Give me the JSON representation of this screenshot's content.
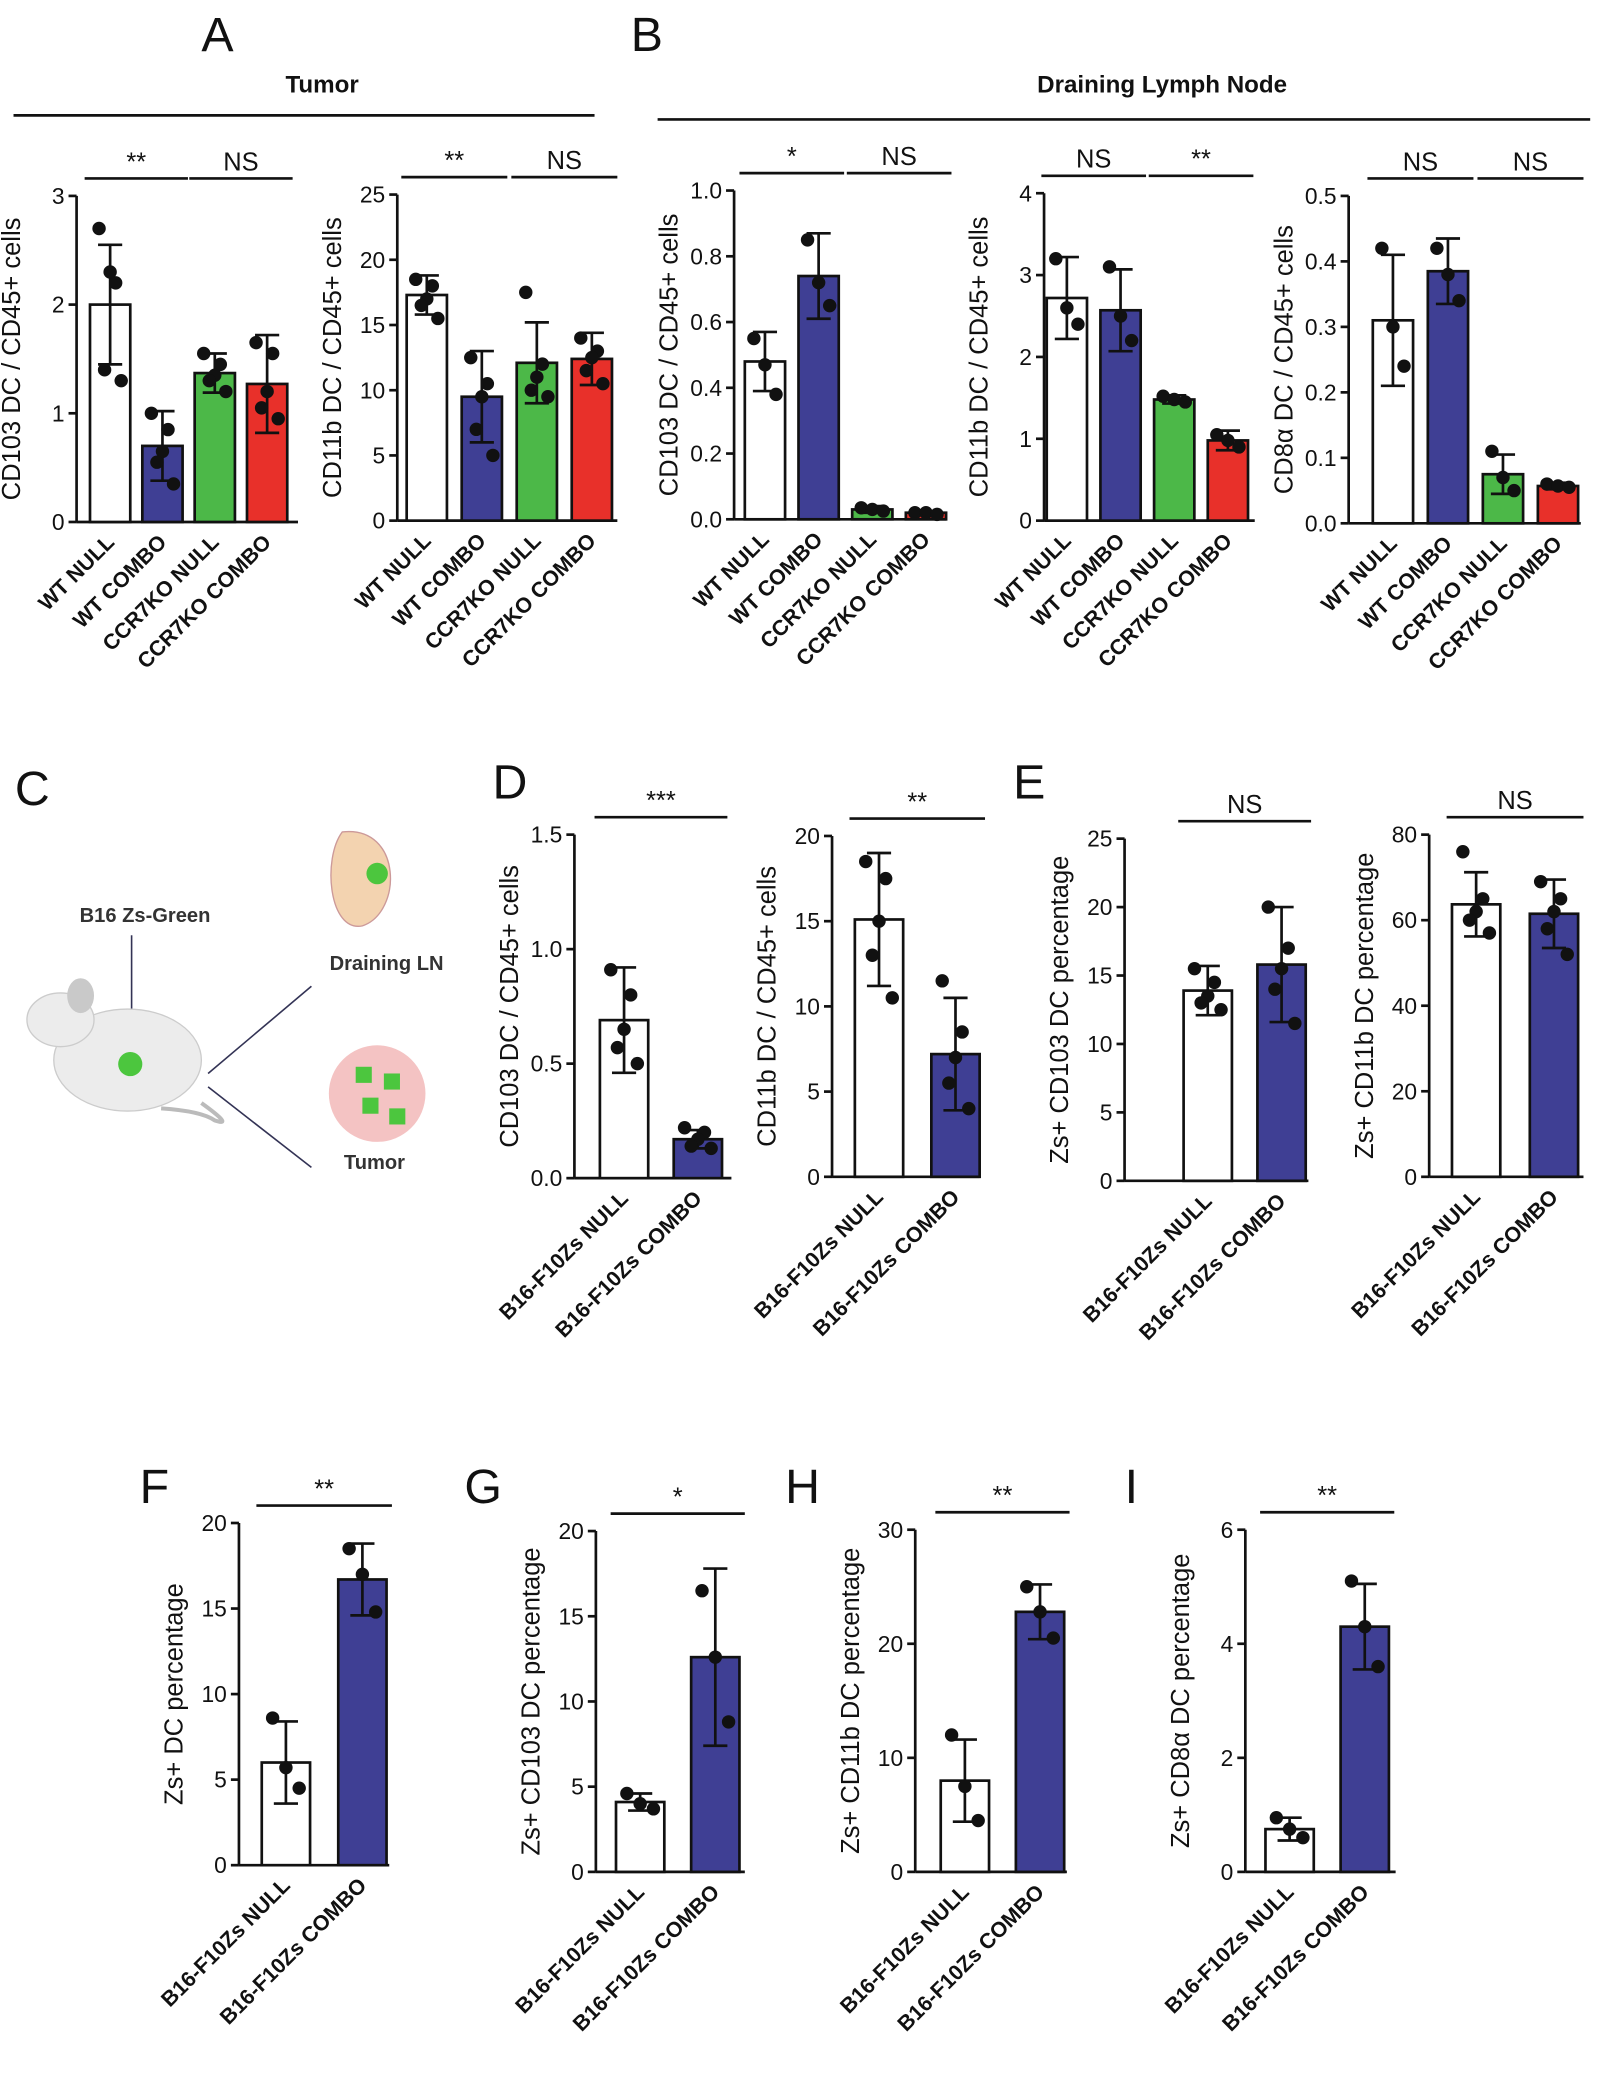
{
  "panels": [
    "A",
    "B",
    "C",
    "D",
    "E",
    "F",
    "G",
    "H",
    "I"
  ],
  "groups": [
    "Tumor",
    "Draining Lymph Node"
  ],
  "diagram": {
    "injection": "B16 Zs-Green",
    "lymph_node": "Draining LN",
    "tumor": "Tumor"
  },
  "chart_data": [
    {
      "type": "bar",
      "ylabel": "CD103 DC / CD45+ cells",
      "categories": [
        "WT NULL",
        "WT COMBO",
        "CCR7KO NULL",
        "CCR7KO COMBO"
      ],
      "colors": [
        "#ffffff",
        "#3f3f94",
        "#4cb848",
        "#e8302a"
      ],
      "values": [
        2.0,
        0.7,
        1.37,
        1.27
      ],
      "errors": [
        0.55,
        0.32,
        0.18,
        0.45
      ],
      "points": [
        [
          2.7,
          2.2,
          2.3,
          1.4,
          1.3
        ],
        [
          1.0,
          0.85,
          0.65,
          0.55,
          0.35
        ],
        [
          1.55,
          1.45,
          1.35,
          1.3,
          1.2
        ],
        [
          1.65,
          1.55,
          1.2,
          1.05,
          0.95
        ]
      ],
      "ylim": [
        0,
        3
      ],
      "yticks": [
        0,
        1,
        2,
        3
      ],
      "significance": [
        "**",
        "NS"
      ]
    },
    {
      "type": "bar",
      "ylabel": "CD11b DC / CD45+ cells",
      "categories": [
        "WT NULL",
        "WT COMBO",
        "CCR7KO NULL",
        "CCR7KO COMBO"
      ],
      "colors": [
        "#ffffff",
        "#3f3f94",
        "#4cb848",
        "#e8302a"
      ],
      "values": [
        17.3,
        9.5,
        12.1,
        12.4
      ],
      "errors": [
        1.5,
        3.5,
        3.1,
        2.0
      ],
      "points": [
        [
          18.5,
          18,
          17,
          16.5,
          15.5
        ],
        [
          12.5,
          10.5,
          9.5,
          7,
          5
        ],
        [
          17.5,
          12,
          11,
          10,
          9.5
        ],
        [
          14,
          13,
          12.5,
          11.5,
          10.5
        ]
      ],
      "ylim": [
        0,
        25
      ],
      "yticks": [
        0,
        5,
        10,
        15,
        20,
        25
      ],
      "significance": [
        "**",
        "NS"
      ]
    },
    {
      "type": "bar",
      "ylabel": "CD103 DC / CD45+ cells",
      "categories": [
        "WT NULL",
        "WT COMBO",
        "CCR7KO NULL",
        "CCR7KO COMBO"
      ],
      "colors": [
        "#ffffff",
        "#3f3f94",
        "#4cb848",
        "#e8302a"
      ],
      "values": [
        0.48,
        0.74,
        0.03,
        0.02
      ],
      "errors": [
        0.09,
        0.13,
        0.01,
        0.005
      ],
      "points": [
        [
          0.55,
          0.47,
          0.38
        ],
        [
          0.85,
          0.72,
          0.65
        ],
        [
          0.035,
          0.03,
          0.025
        ],
        [
          0.02,
          0.02,
          0.015
        ]
      ],
      "ylim": [
        0,
        1
      ],
      "yticks": [
        {
          "value": 0,
          "label": "0.0"
        },
        0.2,
        0.4,
        0.6,
        0.8,
        {
          "value": 1,
          "label": "1.0"
        }
      ],
      "significance": [
        "*",
        "NS"
      ]
    },
    {
      "type": "bar",
      "ylabel": "CD11b DC / CD45+ cells",
      "categories": [
        "WT NULL",
        "WT COMBO",
        "CCR7KO NULL",
        "CCR7KO COMBO"
      ],
      "colors": [
        "#ffffff",
        "#3f3f94",
        "#4cb848",
        "#e8302a"
      ],
      "values": [
        2.72,
        2.57,
        1.48,
        0.98
      ],
      "errors": [
        0.5,
        0.5,
        0.05,
        0.12
      ],
      "points": [
        [
          3.2,
          2.6,
          2.4
        ],
        [
          3.1,
          2.5,
          2.2
        ],
        [
          1.52,
          1.48,
          1.45
        ],
        [
          1.05,
          0.98,
          0.9
        ]
      ],
      "ylim": [
        0,
        4
      ],
      "yticks": [
        0,
        1,
        2,
        3,
        4
      ],
      "significance": [
        "NS",
        "**"
      ]
    },
    {
      "type": "bar",
      "ylabel": "CD8α DC / CD45+ cells",
      "categories": [
        "WT NULL",
        "WT COMBO",
        "CCR7KO NULL",
        "CCR7KO COMBO"
      ],
      "colors": [
        "#ffffff",
        "#3f3f94",
        "#4cb848",
        "#e8302a"
      ],
      "values": [
        0.31,
        0.385,
        0.075,
        0.057
      ],
      "errors": [
        0.1,
        0.05,
        0.03,
        0.005
      ],
      "points": [
        [
          0.42,
          0.3,
          0.24
        ],
        [
          0.42,
          0.38,
          0.34
        ],
        [
          0.11,
          0.07,
          0.05
        ],
        [
          0.06,
          0.057,
          0.055
        ]
      ],
      "ylim": [
        0,
        0.5
      ],
      "yticks": [
        {
          "value": 0,
          "label": "0.0"
        },
        0.1,
        0.2,
        0.3,
        0.4,
        0.5
      ],
      "significance": [
        "NS",
        "NS"
      ]
    },
    {
      "type": "bar",
      "ylabel": "CD103 DC / CD45+ cells",
      "categories": [
        "B16-F10Zs NULL",
        "B16-F10Zs COMBO"
      ],
      "colors": [
        "#ffffff",
        "#3f3f94"
      ],
      "values": [
        0.69,
        0.17
      ],
      "errors": [
        0.23,
        0.04
      ],
      "points": [
        [
          0.91,
          0.8,
          0.65,
          0.57,
          0.5
        ],
        [
          0.22,
          0.2,
          0.17,
          0.14,
          0.13
        ]
      ],
      "ylim": [
        0,
        1.5
      ],
      "yticks": [
        {
          "value": 0,
          "label": "0.0"
        },
        0.5,
        {
          "value": 1,
          "label": "1.0"
        },
        1.5
      ],
      "significance": [
        "***"
      ]
    },
    {
      "type": "bar",
      "ylabel": "CD11b DC / CD45+ cells",
      "categories": [
        "B16-F10Zs NULL",
        "B16-F10Zs COMBO"
      ],
      "colors": [
        "#ffffff",
        "#3f3f94"
      ],
      "values": [
        15.1,
        7.2
      ],
      "errors": [
        3.9,
        3.3
      ],
      "points": [
        [
          18.5,
          17.5,
          15,
          13,
          10.5
        ],
        [
          11.5,
          8.5,
          7,
          5.5,
          4
        ]
      ],
      "ylim": [
        0,
        20
      ],
      "yticks": [
        0,
        5,
        10,
        15,
        20
      ],
      "significance": [
        "**"
      ]
    },
    {
      "type": "bar",
      "ylabel": "Zs+ CD103 DC percentage",
      "categories": [
        "B16-F10Zs NULL",
        "B16-F10Zs COMBO"
      ],
      "colors": [
        "#ffffff",
        "#3f3f94"
      ],
      "values": [
        13.9,
        15.8
      ],
      "errors": [
        1.8,
        4.2
      ],
      "points": [
        [
          15.5,
          14.5,
          13.5,
          13,
          12.5
        ],
        [
          20,
          17,
          15.5,
          14,
          11.5
        ]
      ],
      "ylim": [
        0,
        25
      ],
      "yticks": [
        0,
        5,
        10,
        15,
        20,
        25
      ],
      "significance": [
        "NS"
      ]
    },
    {
      "type": "bar",
      "ylabel": "Zs+ CD11b DC percentage",
      "categories": [
        "B16-F10Zs NULL",
        "B16-F10Zs COMBO"
      ],
      "colors": [
        "#ffffff",
        "#3f3f94"
      ],
      "values": [
        63.7,
        61.5
      ],
      "errors": [
        7.5,
        8
      ],
      "points": [
        [
          76,
          65,
          62,
          60,
          57
        ],
        [
          69,
          65,
          62,
          58,
          52
        ]
      ],
      "ylim": [
        0,
        80
      ],
      "yticks": [
        0,
        20,
        40,
        60,
        80
      ],
      "significance": [
        "NS"
      ]
    },
    {
      "type": "bar",
      "ylabel": "Zs+ DC percentage",
      "categories": [
        "B16-F10Zs NULL",
        "B16-F10Zs COMBO"
      ],
      "colors": [
        "#ffffff",
        "#3f3f94"
      ],
      "values": [
        6,
        16.7
      ],
      "errors": [
        2.4,
        2.1
      ],
      "points": [
        [
          8.6,
          5.7,
          4.5
        ],
        [
          18.5,
          17,
          14.8
        ]
      ],
      "ylim": [
        0,
        20
      ],
      "yticks": [
        0,
        5,
        10,
        15,
        20
      ],
      "significance": [
        "**"
      ]
    },
    {
      "type": "bar",
      "ylabel": "Zs+ CD103 DC percentage",
      "categories": [
        "B16-F10Zs NULL",
        "B16-F10Zs COMBO"
      ],
      "colors": [
        "#ffffff",
        "#3f3f94"
      ],
      "values": [
        4.1,
        12.6
      ],
      "errors": [
        0.5,
        5.2
      ],
      "points": [
        [
          4.6,
          4,
          3.7
        ],
        [
          16.5,
          12.6,
          8.8
        ]
      ],
      "ylim": [
        0,
        20
      ],
      "yticks": [
        0,
        5,
        10,
        15,
        20
      ],
      "significance": [
        "*"
      ]
    },
    {
      "type": "bar",
      "ylabel": "Zs+ CD11b DC percentage",
      "categories": [
        "B16-F10Zs NULL",
        "B16-F10Zs COMBO"
      ],
      "colors": [
        "#ffffff",
        "#3f3f94"
      ],
      "values": [
        8,
        22.8
      ],
      "errors": [
        3.6,
        2.4
      ],
      "points": [
        [
          12,
          7.5,
          4.5
        ],
        [
          25,
          22.8,
          20.5
        ]
      ],
      "ylim": [
        0,
        30
      ],
      "yticks": [
        0,
        10,
        20,
        30
      ],
      "significance": [
        "**"
      ]
    },
    {
      "type": "bar",
      "ylabel": "Zs+ CD8α DC percentage",
      "categories": [
        "B16-F10Zs NULL",
        "B16-F10Zs COMBO"
      ],
      "colors": [
        "#ffffff",
        "#3f3f94"
      ],
      "values": [
        0.75,
        4.3
      ],
      "errors": [
        0.2,
        0.75
      ],
      "points": [
        [
          0.95,
          0.75,
          0.6
        ],
        [
          5.1,
          4.3,
          3.6
        ]
      ],
      "ylim": [
        0,
        6
      ],
      "yticks": [
        0,
        2,
        4,
        6
      ],
      "significance": [
        "**"
      ]
    }
  ]
}
